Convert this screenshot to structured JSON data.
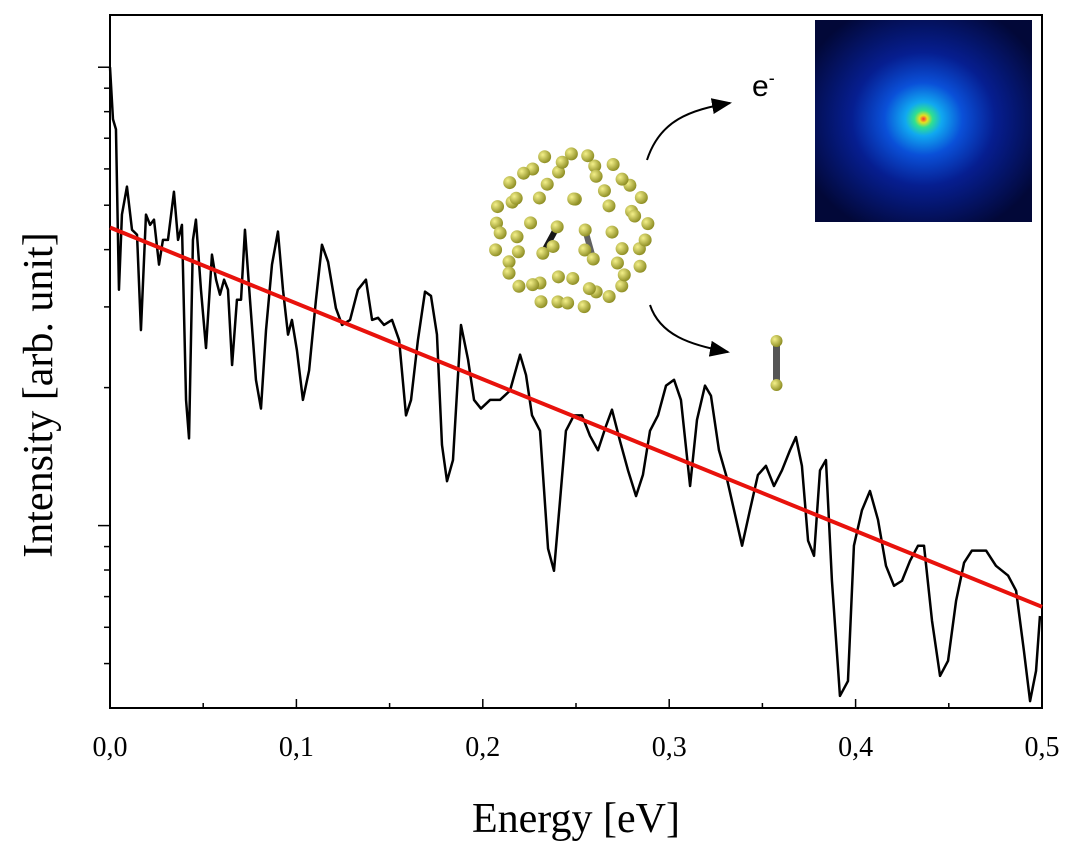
{
  "chart_data": {
    "type": "line",
    "xlabel": "Energy [eV]",
    "ylabel": "Intensity [arb. unit]",
    "annotation": {
      "text": "e",
      "superscript": "-"
    },
    "yscale": "log",
    "xlim": [
      0,
      0.5
    ],
    "ylim": [
      0.4,
      13
    ],
    "xticks": [
      {
        "value": 0,
        "label": "0,0"
      },
      {
        "value": 0.1,
        "label": "0,1"
      },
      {
        "value": 0.2,
        "label": "0,2"
      },
      {
        "value": 0.3,
        "label": "0,3"
      },
      {
        "value": 0.4,
        "label": "0,4"
      },
      {
        "value": 0.5,
        "label": "0,5"
      }
    ],
    "xminorticks": [
      0.05,
      0.15,
      0.25,
      0.35,
      0.45
    ],
    "yticks": [
      1,
      10
    ],
    "yminorticks": [
      0.5,
      0.6,
      0.7,
      0.8,
      0.9,
      2,
      3,
      4,
      5,
      6,
      7,
      8,
      9
    ],
    "series": [
      {
        "color": "#000000",
        "x": [
          0,
          0.0016,
          0.0032,
          0.0048,
          0.0064,
          0.0091,
          0.0118,
          0.0145,
          0.0166,
          0.0193,
          0.0215,
          0.0236,
          0.0263,
          0.0284,
          0.0311,
          0.0343,
          0.0365,
          0.0386,
          0.0408,
          0.0424,
          0.0445,
          0.0461,
          0.0488,
          0.0515,
          0.0547,
          0.0569,
          0.059,
          0.0612,
          0.0633,
          0.0655,
          0.0681,
          0.0703,
          0.0724,
          0.0751,
          0.0783,
          0.081,
          0.0837,
          0.0869,
          0.0901,
          0.0928,
          0.0955,
          0.0976,
          0.1003,
          0.1035,
          0.1068,
          0.1105,
          0.1137,
          0.117,
          0.1212,
          0.1245,
          0.1288,
          0.133,
          0.1373,
          0.1406,
          0.1438,
          0.147,
          0.1513,
          0.1551,
          0.1588,
          0.1615,
          0.1652,
          0.169,
          0.1722,
          0.1754,
          0.1781,
          0.1808,
          0.184,
          0.1883,
          0.1921,
          0.1953,
          0.199,
          0.2039,
          0.2092,
          0.2146,
          0.22,
          0.2232,
          0.2264,
          0.2307,
          0.235,
          0.2382,
          0.2414,
          0.2446,
          0.2489,
          0.2532,
          0.2575,
          0.2618,
          0.2661,
          0.2693,
          0.2736,
          0.2779,
          0.2822,
          0.2859,
          0.2897,
          0.294,
          0.2983,
          0.3026,
          0.3063,
          0.3112,
          0.3149,
          0.3192,
          0.3224,
          0.3267,
          0.3305,
          0.3348,
          0.3391,
          0.3433,
          0.3476,
          0.3519,
          0.3562,
          0.3605,
          0.3648,
          0.368,
          0.3712,
          0.3745,
          0.3777,
          0.3809,
          0.3841,
          0.3873,
          0.3916,
          0.3959,
          0.3991,
          0.4034,
          0.4077,
          0.412,
          0.4163,
          0.4206,
          0.4249,
          0.4292,
          0.4335,
          0.4367,
          0.441,
          0.4453,
          0.4496,
          0.4539,
          0.4582,
          0.4624,
          0.47,
          0.4753,
          0.4818,
          0.4861,
          0.4903,
          0.4936,
          0.4968,
          0.4989
        ],
        "values": [
          10.0,
          7.7,
          7.32,
          3.27,
          4.77,
          5.49,
          4.42,
          4.31,
          2.67,
          4.77,
          4.53,
          4.65,
          3.71,
          4.2,
          4.2,
          5.35,
          4.2,
          4.53,
          1.88,
          1.55,
          4.2,
          4.65,
          3.27,
          2.44,
          3.9,
          3.44,
          3.19,
          3.44,
          3.27,
          2.24,
          3.11,
          3.11,
          4.42,
          3.11,
          2.08,
          1.8,
          2.67,
          3.71,
          4.38,
          3.27,
          2.61,
          2.81,
          2.41,
          1.88,
          2.18,
          3.11,
          4.1,
          3.76,
          2.98,
          2.74,
          2.81,
          3.27,
          3.44,
          2.81,
          2.84,
          2.74,
          2.81,
          2.54,
          1.74,
          1.88,
          2.54,
          3.24,
          3.17,
          2.61,
          1.5,
          1.25,
          1.39,
          2.74,
          2.3,
          1.88,
          1.8,
          1.88,
          1.88,
          1.97,
          2.36,
          2.13,
          1.74,
          1.61,
          0.891,
          0.797,
          1.13,
          1.61,
          1.74,
          1.74,
          1.57,
          1.46,
          1.65,
          1.79,
          1.53,
          1.32,
          1.16,
          1.29,
          1.61,
          1.74,
          2.02,
          2.08,
          1.88,
          1.22,
          1.7,
          2.02,
          1.92,
          1.46,
          1.29,
          1.08,
          0.904,
          1.08,
          1.29,
          1.35,
          1.22,
          1.32,
          1.46,
          1.56,
          1.35,
          0.927,
          0.859,
          1.32,
          1.39,
          0.758,
          0.425,
          0.458,
          0.904,
          1.08,
          1.19,
          1.03,
          0.817,
          0.739,
          0.758,
          0.838,
          0.904,
          0.904,
          0.62,
          0.47,
          0.507,
          0.685,
          0.83,
          0.882,
          0.882,
          0.817,
          0.778,
          0.721,
          0.533,
          0.414,
          0.482,
          0.635
        ]
      },
      {
        "color": "#e8120c",
        "x": [
          0,
          0.5
        ],
        "values": [
          4.47,
          0.665
        ]
      }
    ]
  }
}
